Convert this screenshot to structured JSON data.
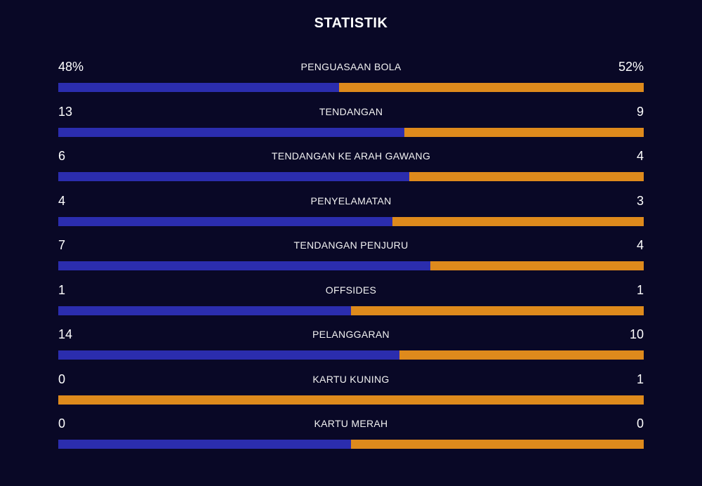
{
  "title": "STATISTIK",
  "colors": {
    "background": "#090826",
    "home": "#2b2dae",
    "away": "#de8a1c"
  },
  "stats": [
    {
      "label": "PENGUASAAN BOLA",
      "home": "48%",
      "away": "52%",
      "home_share": 0.48
    },
    {
      "label": "TENDANGAN",
      "home": "13",
      "away": "9",
      "home_share": 0.591
    },
    {
      "label": "TENDANGAN KE ARAH GAWANG",
      "home": "6",
      "away": "4",
      "home_share": 0.6
    },
    {
      "label": "PENYELAMATAN",
      "home": "4",
      "away": "3",
      "home_share": 0.571
    },
    {
      "label": "TENDANGAN PENJURU",
      "home": "7",
      "away": "4",
      "home_share": 0.636
    },
    {
      "label": "OFFSIDES",
      "home": "1",
      "away": "1",
      "home_share": 0.5
    },
    {
      "label": "PELANGGARAN",
      "home": "14",
      "away": "10",
      "home_share": 0.583
    },
    {
      "label": "KARTU KUNING",
      "home": "0",
      "away": "1",
      "home_share": 0.0
    },
    {
      "label": "KARTU MERAH",
      "home": "0",
      "away": "0",
      "home_share": 0.5
    }
  ]
}
